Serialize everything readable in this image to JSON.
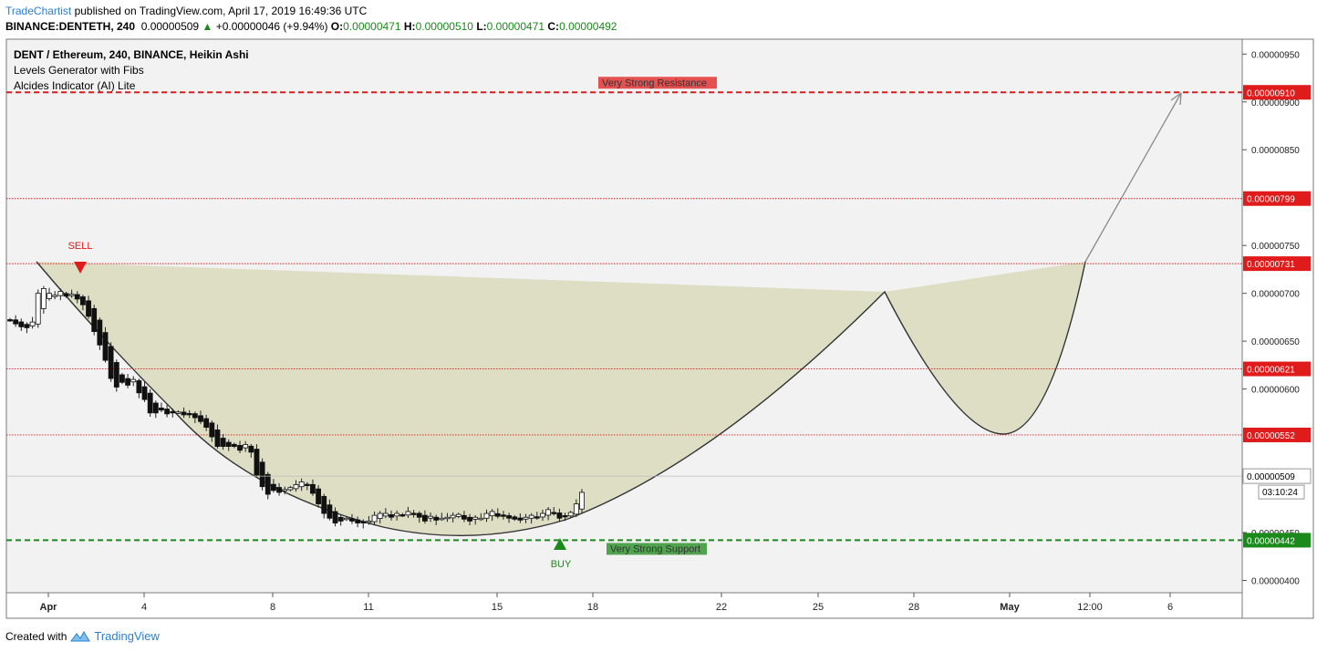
{
  "header": {
    "author": "TradeChartist",
    "published": " published on TradingView.com, April 17, 2019 16:49:36 UTC",
    "symbol": "BINANCE:DENTETH, 240",
    "last": "0.00000509",
    "change_arrow": "▲",
    "change": "+0.00000046 (+9.94%)",
    "o_label": "O:",
    "o_value": "0.00000471",
    "h_label": "H:",
    "h_value": "0.00000510",
    "l_label": "L:",
    "l_value": "0.00000471",
    "c_label": "C:",
    "c_value": "0.00000492"
  },
  "footer": {
    "created_with": "Created with",
    "brand": "TradingView"
  },
  "chart_data": {
    "type": "candlestick",
    "title": "DENT / Ethereum, 240, BINANCE, Heikin Ashi",
    "indicators": [
      "Levels Generator with Fibs",
      "Alcides Indicator (AI) Lite"
    ],
    "xlabel": "",
    "ylabel": "",
    "x_tick_labels": [
      "Apr",
      "4",
      "8",
      "11",
      "15",
      "18",
      "22",
      "25",
      "28",
      "May",
      "12:00",
      "6"
    ],
    "y_tick_labels": [
      "0.00000950",
      "0.00000900",
      "0.00000850",
      "0.00000750",
      "0.00000700",
      "0.00000650",
      "0.00000600",
      "0.00000509",
      "0.00000450",
      "0.00000400"
    ],
    "ylim": [
      3.75e-06,
      9.75e-06
    ],
    "levels": [
      {
        "value": "0.00000910",
        "style": "dashed",
        "color": "#e01b1b",
        "label": "Very Strong Resistance"
      },
      {
        "value": "0.00000799",
        "style": "dotted",
        "color": "#e01b1b",
        "label": ""
      },
      {
        "value": "0.00000731",
        "style": "dotted",
        "color": "#e01b1b",
        "label": ""
      },
      {
        "value": "0.00000621",
        "style": "dotted",
        "color": "#e01b1b",
        "label": ""
      },
      {
        "value": "0.00000552",
        "style": "dotted",
        "color": "#e01b1b",
        "label": ""
      },
      {
        "value": "0.00000442",
        "style": "dashed",
        "color": "#1a8a1a",
        "label": "Very Strong Support"
      }
    ],
    "current_price": "0.00000509",
    "countdown": "03:10:24",
    "signals": [
      {
        "label": "SELL",
        "date": "Apr 2",
        "color": "#e01b1b"
      },
      {
        "label": "BUY",
        "date": "Apr 17",
        "color": "#1a8a1a"
      }
    ],
    "candles_close": [
      6.72e-06,
      6.68e-06,
      6.65e-06,
      6.64e-06,
      6.7e-06,
      7e-06,
      7.05e-06,
      7e-06,
      6.98e-06,
      7.02e-06,
      6.97e-06,
      6.99e-06,
      6.94e-06,
      6.88e-06,
      6.76e-06,
      6.6e-06,
      6.46e-06,
      6.3e-06,
      6.11e-06,
      6.02e-06,
      6.07e-06,
      6.04e-06,
      6.1e-06,
      5.96e-06,
      5.89e-06,
      5.75e-06,
      5.75e-06,
      5.78e-06,
      5.74e-06,
      5.75e-06,
      5.76e-06,
      5.73e-06,
      5.74e-06,
      5.7e-06,
      5.66e-06,
      5.6e-06,
      5.5e-06,
      5.4e-06,
      5.4e-06,
      5.4e-06,
      5.4e-06,
      5.36e-06,
      5.42e-06,
      5.34e-06,
      5.1e-06,
      4.98e-06,
      4.9e-06,
      4.94e-06,
      4.92e-06,
      4.95e-06,
      4.97e-06,
      5e-06,
      5.03e-06,
      5e-06,
      4.91e-06,
      4.8e-06,
      4.7e-06,
      4.65e-06,
      4.6e-06,
      4.62e-06,
      4.65e-06,
      4.62e-06,
      4.6e-06,
      4.6e-06,
      4.62e-06,
      4.68e-06,
      4.7e-06,
      4.7e-06,
      4.66e-06,
      4.7e-06,
      4.68e-06,
      4.72e-06,
      4.7e-06,
      4.66e-06,
      4.62e-06,
      4.67e-06,
      4.63e-06,
      4.65e-06,
      4.66e-06,
      4.68e-06,
      4.69e-06,
      4.64e-06,
      4.62e-06,
      4.66e-06,
      4.65e-06,
      4.7e-06,
      4.72e-06,
      4.67e-06,
      4.67e-06,
      4.65e-06,
      4.64e-06,
      4.63e-06,
      4.66e-06,
      4.68e-06,
      4.66e-06,
      4.7e-06,
      4.74e-06,
      4.7e-06,
      4.65e-06,
      4.67e-06,
      4.71e-06,
      4.8e-06,
      4.92e-06
    ]
  }
}
